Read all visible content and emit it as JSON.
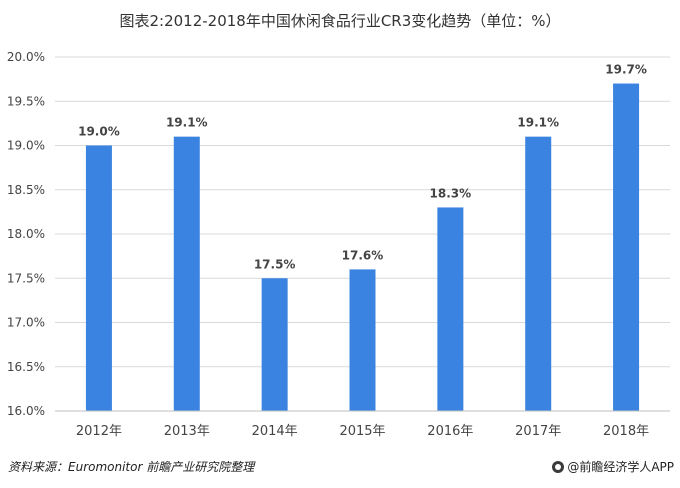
{
  "chart_data": {
    "type": "bar",
    "title": "图表2:2012-2018年中国休闲食品行业CR3变化趋势（单位：%）",
    "categories": [
      "2012年",
      "2013年",
      "2014年",
      "2015年",
      "2016年",
      "2017年",
      "2018年"
    ],
    "values": [
      19.0,
      19.1,
      17.5,
      17.6,
      18.3,
      19.1,
      19.7
    ],
    "data_labels": [
      "19.0%",
      "19.1%",
      "17.5%",
      "17.6%",
      "18.3%",
      "19.1%",
      "19.7%"
    ],
    "ylim": [
      16.0,
      20.0
    ],
    "yticks": [
      "16.0%",
      "16.5%",
      "17.0%",
      "17.5%",
      "18.0%",
      "18.5%",
      "19.0%",
      "19.5%",
      "20.0%"
    ],
    "xlabel": "",
    "ylabel": "",
    "bar_color": "#3b83e0",
    "grid": true
  },
  "footer": {
    "source": "资料来源：Euromonitor 前瞻产业研究院整理",
    "brand": "@前瞻经济学人APP"
  }
}
